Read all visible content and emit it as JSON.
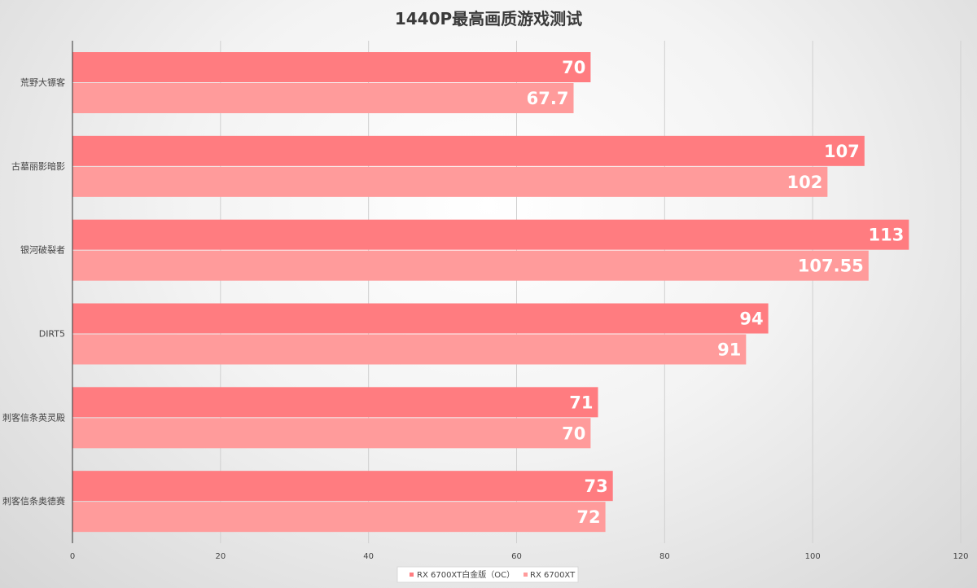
{
  "chart_data": {
    "type": "bar",
    "orientation": "horizontal",
    "title": "1440P最高画质游戏测试",
    "categories": [
      "荒野大镖客",
      "古墓丽影暗影",
      "银河破裂者",
      "DIRT5",
      "刺客信条英灵殿",
      "刺客信条奥德赛"
    ],
    "series": [
      {
        "name": "RX 6700XT白金版（OC）",
        "color": "#ff7c80",
        "values": [
          70,
          107,
          113,
          94,
          71,
          73
        ],
        "labels": [
          "70",
          "107",
          "113",
          "94",
          "71",
          "73"
        ]
      },
      {
        "name": "RX 6700XT",
        "color": "#ff9b9b",
        "values": [
          67.7,
          102,
          107.55,
          91,
          70,
          72
        ],
        "labels": [
          "67.7",
          "102",
          "107.55",
          "91",
          "70",
          "72"
        ]
      }
    ],
    "xlim": [
      0,
      120
    ],
    "xticks": [
      0,
      20,
      40,
      60,
      80,
      100,
      120
    ],
    "xtick_labels": [
      "0",
      "20",
      "40",
      "60",
      "80",
      "100",
      "120"
    ],
    "grid": true,
    "legend_position": "bottom"
  }
}
